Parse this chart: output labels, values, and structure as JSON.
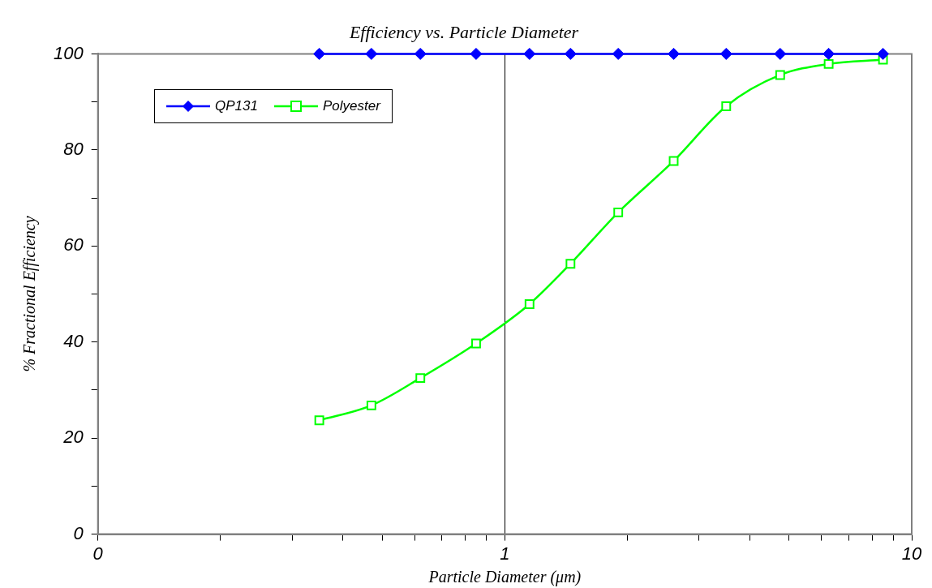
{
  "chart_data": {
    "type": "line",
    "title": "Efficiency vs. Particle Diameter",
    "xlabel": "Particle Diameter (μm)",
    "ylabel": "% Fractional Efficiency",
    "log": "x",
    "xlim": [
      0.1,
      10
    ],
    "xticks": [
      {
        "value": 0.1,
        "label": "0"
      },
      {
        "value": 0.2,
        "label": null
      },
      {
        "value": 0.3,
        "label": null
      },
      {
        "value": 0.4,
        "label": null
      },
      {
        "value": 0.5,
        "label": null
      },
      {
        "value": 0.6,
        "label": null
      },
      {
        "value": 0.7,
        "label": null
      },
      {
        "value": 0.8,
        "label": null
      },
      {
        "value": 0.9,
        "label": null
      },
      1,
      {
        "value": 2,
        "label": null
      },
      {
        "value": 3,
        "label": null
      },
      {
        "value": 4,
        "label": null
      },
      {
        "value": 5,
        "label": null
      },
      {
        "value": 6,
        "label": null
      },
      {
        "value": 7,
        "label": null
      },
      {
        "value": 8,
        "label": null
      },
      {
        "value": 9,
        "label": null
      },
      10
    ],
    "ylim": [
      0,
      100
    ],
    "yticks": [
      0,
      {
        "value": 10,
        "label": null
      },
      20,
      {
        "value": 30,
        "label": null
      },
      40,
      {
        "value": 50,
        "label": null
      },
      60,
      {
        "value": 70,
        "label": null
      },
      80,
      {
        "value": 90,
        "label": null
      },
      100
    ],
    "grid": "x",
    "legend": "top left",
    "series": [
      {
        "name": "QP131",
        "color": "#0000ff",
        "marker": "diamond",
        "x": [
          0.35,
          0.47,
          0.62,
          0.85,
          1.15,
          1.45,
          1.9,
          2.6,
          3.5,
          4.75,
          6.25,
          8.5
        ],
        "values": [
          100,
          100,
          100,
          100,
          100,
          100,
          100,
          100,
          100,
          100,
          100,
          100
        ]
      },
      {
        "name": "Polyester",
        "color": "#00ff00",
        "marker": "square",
        "x": [
          0.35,
          0.47,
          0.62,
          0.85,
          1.15,
          1.45,
          1.9,
          2.6,
          3.5,
          4.75,
          6.25,
          8.5
        ],
        "values": [
          23.7,
          26.8,
          32.5,
          39.7,
          47.9,
          56.3,
          67,
          77.7,
          89.1,
          95.6,
          97.9,
          98.8
        ]
      }
    ]
  }
}
